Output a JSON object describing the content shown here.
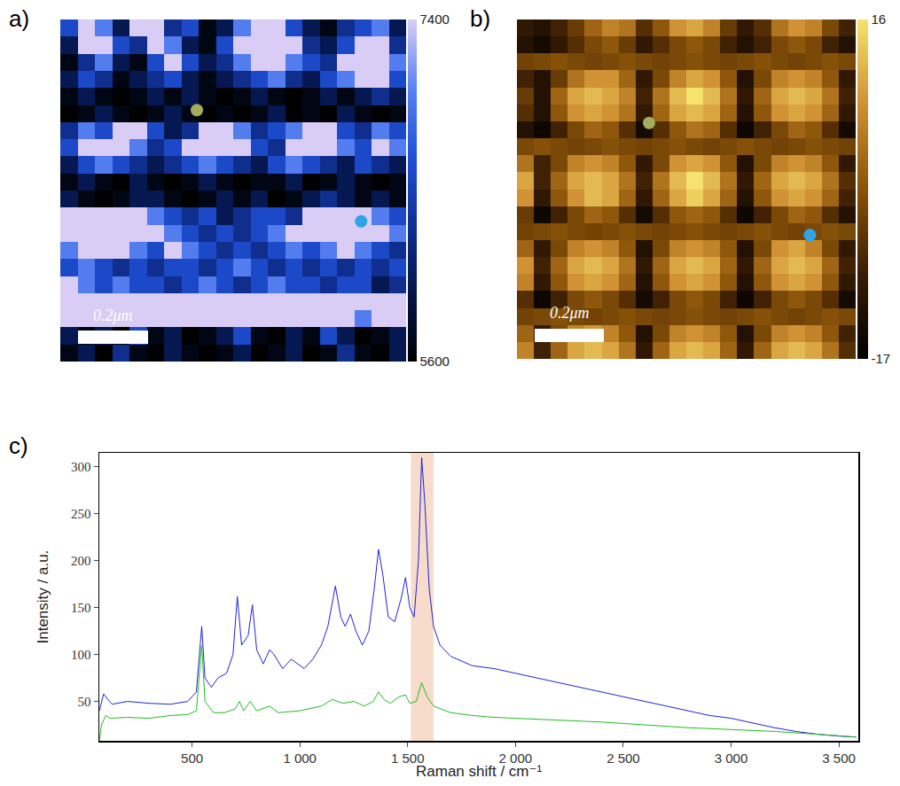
{
  "chart_data": [
    {
      "type": "heatmap",
      "panel": "a)",
      "tick_labels": false,
      "grid": false,
      "scale_bar": "0.2μm",
      "zlim": [
        5600,
        7400
      ],
      "zticks": [
        5600,
        7400
      ],
      "points": [
        {
          "color": "#a4ad5a",
          "x": 7.4,
          "y": 4.8
        },
        {
          "color": "#2ea3e6",
          "x": 16.9,
          "y": 11.3
        }
      ],
      "z": [
        [
          6600,
          7400,
          7000,
          6000,
          7400,
          7400,
          6300,
          6600,
          5700,
          6000,
          7000,
          7400,
          7400,
          6600,
          6000,
          5700,
          6300,
          6600,
          7000,
          6000
        ],
        [
          6000,
          7400,
          7400,
          6600,
          6300,
          7400,
          7000,
          6000,
          5700,
          6600,
          7400,
          7400,
          7400,
          7400,
          6300,
          6000,
          6600,
          7400,
          7400,
          6300
        ],
        [
          5700,
          6300,
          7000,
          6000,
          5700,
          6600,
          7400,
          6600,
          6000,
          6300,
          7000,
          7400,
          7400,
          7000,
          6600,
          6300,
          7400,
          7400,
          7400,
          7000
        ],
        [
          6000,
          6600,
          6300,
          5700,
          6000,
          6300,
          6600,
          6000,
          5700,
          6000,
          6300,
          6600,
          7000,
          6300,
          6000,
          6600,
          7000,
          7400,
          7400,
          6600
        ],
        [
          5700,
          6000,
          5700,
          5600,
          5700,
          6000,
          5700,
          6000,
          5700,
          5600,
          5700,
          6000,
          5700,
          5600,
          5700,
          6000,
          5700,
          6000,
          6300,
          6000
        ],
        [
          5600,
          5700,
          6000,
          5700,
          5600,
          5700,
          6000,
          5700,
          5600,
          5700,
          5600,
          5700,
          6000,
          5600,
          5700,
          5600,
          6000,
          5700,
          5600,
          5700
        ],
        [
          6300,
          7000,
          6600,
          7400,
          7400,
          6600,
          6000,
          6300,
          7400,
          7400,
          7000,
          6300,
          6600,
          7000,
          7400,
          7400,
          6600,
          6300,
          7000,
          6600
        ],
        [
          6600,
          7400,
          7400,
          7400,
          7000,
          6300,
          6600,
          7400,
          7400,
          7400,
          7400,
          6600,
          6300,
          7400,
          7400,
          7400,
          7000,
          6600,
          7400,
          7000
        ],
        [
          6000,
          6600,
          7000,
          6600,
          6300,
          6000,
          6300,
          6600,
          7000,
          6600,
          6300,
          6000,
          6600,
          7000,
          6600,
          6300,
          6000,
          6600,
          6300,
          6000
        ],
        [
          5700,
          6000,
          5700,
          5600,
          6000,
          5700,
          5600,
          5700,
          6000,
          5700,
          5600,
          5700,
          5700,
          6000,
          5600,
          5700,
          6000,
          5700,
          5600,
          5700
        ],
        [
          6000,
          5700,
          5600,
          5700,
          6000,
          6000,
          5700,
          5600,
          5700,
          6000,
          5700,
          6000,
          5600,
          5700,
          6000,
          6300,
          6000,
          5700,
          6000,
          5700
        ],
        [
          7400,
          7400,
          7400,
          7400,
          7400,
          7000,
          6600,
          6300,
          6600,
          6000,
          6300,
          6600,
          6600,
          6300,
          7400,
          7400,
          7400,
          7400,
          7000,
          6600
        ],
        [
          7400,
          7400,
          7400,
          7400,
          7400,
          7400,
          7000,
          6600,
          6300,
          6600,
          6300,
          6600,
          7000,
          7400,
          7400,
          7400,
          7400,
          7400,
          7400,
          7000
        ],
        [
          7000,
          7400,
          7400,
          7400,
          7000,
          6600,
          7400,
          7000,
          6600,
          6300,
          6600,
          6300,
          6600,
          7000,
          6600,
          7000,
          7400,
          7000,
          6600,
          6300
        ],
        [
          6600,
          7000,
          6600,
          6300,
          6600,
          6300,
          6600,
          6600,
          6300,
          6600,
          7000,
          6600,
          6300,
          6600,
          6300,
          6600,
          6300,
          6600,
          6300,
          6600
        ],
        [
          7400,
          7000,
          6600,
          7000,
          6600,
          6600,
          6300,
          6600,
          7000,
          6600,
          6300,
          6600,
          7000,
          6600,
          6600,
          6300,
          6600,
          6600,
          6000,
          6300
        ],
        [
          7400,
          7400,
          7400,
          7400,
          7400,
          7400,
          7400,
          7400,
          7400,
          7400,
          7400,
          7400,
          7400,
          7400,
          7400,
          7400,
          7400,
          7400,
          7400,
          7400
        ],
        [
          7400,
          7400,
          7400,
          7400,
          7400,
          7400,
          7400,
          7400,
          7400,
          7400,
          7400,
          7400,
          7400,
          7400,
          7400,
          7400,
          7400,
          7000,
          7400,
          7400
        ],
        [
          6000,
          5700,
          6000,
          5600,
          6600,
          5700,
          6000,
          5600,
          5700,
          6000,
          6600,
          5700,
          5600,
          6000,
          5700,
          6600,
          6000,
          5600,
          5700,
          6000
        ],
        [
          5700,
          6000,
          5600,
          6300,
          5700,
          5600,
          6000,
          5700,
          5600,
          5700,
          6000,
          5600,
          5700,
          6000,
          5600,
          5700,
          6300,
          5700,
          5600,
          6000
        ]
      ]
    },
    {
      "type": "heatmap",
      "panel": "b)",
      "tick_labels": false,
      "grid": false,
      "scale_bar": "0.2μm",
      "zlim": [
        -17,
        16
      ],
      "zticks": [
        -17,
        16
      ],
      "points": [
        {
          "color": "#a4ad5a",
          "x": 7.3,
          "y": 5.6
        },
        {
          "color": "#2ea3e6",
          "x": 16.8,
          "y": 12.2
        }
      ],
      "z": [
        [
          -10,
          -12,
          -8,
          -4,
          2,
          6,
          4,
          -6,
          0,
          8,
          10,
          6,
          -4,
          -10,
          -6,
          4,
          8,
          6,
          -2,
          -8
        ],
        [
          -12,
          -14,
          -10,
          -6,
          -2,
          0,
          -4,
          -10,
          -6,
          -2,
          0,
          -2,
          -8,
          -12,
          -8,
          -2,
          0,
          -2,
          -8,
          -12
        ],
        [
          -3,
          -2,
          -1,
          -2,
          -3,
          -2,
          -1,
          -2,
          -3,
          -2,
          -1,
          -2,
          -3,
          -2,
          -1,
          -2,
          -3,
          -2,
          -1,
          -2
        ],
        [
          -8,
          -12,
          -4,
          4,
          8,
          8,
          2,
          -10,
          -2,
          6,
          10,
          8,
          0,
          -12,
          -2,
          6,
          8,
          6,
          0,
          -10
        ],
        [
          -4,
          -12,
          2,
          10,
          12,
          10,
          6,
          -8,
          4,
          12,
          16,
          12,
          4,
          -10,
          2,
          10,
          12,
          10,
          4,
          -8
        ],
        [
          -6,
          -12,
          0,
          8,
          10,
          8,
          4,
          -10,
          2,
          10,
          12,
          10,
          2,
          -12,
          0,
          8,
          10,
          8,
          2,
          -10
        ],
        [
          -12,
          -15,
          -8,
          -2,
          2,
          0,
          -6,
          -14,
          -6,
          0,
          4,
          2,
          -6,
          -15,
          -8,
          -2,
          2,
          0,
          -6,
          -14
        ],
        [
          -2,
          -1,
          -2,
          -3,
          -2,
          -1,
          -2,
          -3,
          -2,
          -1,
          -2,
          -3,
          -2,
          -1,
          -2,
          -3,
          -2,
          -1,
          -2,
          -3
        ],
        [
          4,
          -8,
          -2,
          6,
          8,
          6,
          0,
          -10,
          -2,
          8,
          10,
          8,
          0,
          -12,
          -2,
          6,
          8,
          6,
          0,
          -10
        ],
        [
          10,
          -8,
          2,
          10,
          12,
          10,
          4,
          -8,
          4,
          12,
          16,
          12,
          4,
          -10,
          2,
          10,
          12,
          10,
          4,
          -6
        ],
        [
          8,
          -10,
          0,
          8,
          12,
          10,
          2,
          -10,
          2,
          10,
          14,
          10,
          2,
          -12,
          0,
          8,
          10,
          8,
          2,
          -8
        ],
        [
          -4,
          -15,
          -8,
          -2,
          2,
          0,
          -6,
          -14,
          -6,
          0,
          2,
          0,
          -6,
          -15,
          -8,
          -2,
          2,
          0,
          -6,
          -12
        ],
        [
          -3,
          -2,
          -1,
          -2,
          -3,
          -2,
          -1,
          -2,
          -3,
          -2,
          -1,
          -2,
          -3,
          -2,
          -1,
          -2,
          -3,
          -2,
          -1,
          -2
        ],
        [
          2,
          -10,
          -2,
          6,
          8,
          6,
          0,
          -12,
          -2,
          6,
          8,
          6,
          0,
          -12,
          -2,
          8,
          10,
          6,
          -2,
          -10
        ],
        [
          8,
          -8,
          2,
          10,
          12,
          10,
          4,
          -10,
          2,
          10,
          12,
          10,
          2,
          -10,
          2,
          10,
          12,
          10,
          2,
          -8
        ],
        [
          6,
          -10,
          0,
          8,
          10,
          8,
          2,
          -12,
          0,
          8,
          10,
          8,
          0,
          -12,
          0,
          8,
          10,
          8,
          0,
          -10
        ],
        [
          -6,
          -15,
          -8,
          -2,
          0,
          -2,
          -6,
          -14,
          -8,
          -2,
          0,
          -2,
          -8,
          -15,
          -8,
          -2,
          0,
          -2,
          -6,
          -14
        ],
        [
          -3,
          -2,
          -1,
          -2,
          -3,
          -2,
          -1,
          -2,
          -3,
          -2,
          -1,
          -2,
          -3,
          -2,
          -1,
          -2,
          -3,
          -2,
          -1,
          -2
        ],
        [
          2,
          -10,
          -2,
          6,
          8,
          6,
          0,
          -12,
          -2,
          6,
          8,
          6,
          0,
          -12,
          -2,
          6,
          8,
          6,
          0,
          -8
        ],
        [
          6,
          -8,
          2,
          10,
          12,
          10,
          4,
          -10,
          2,
          10,
          12,
          10,
          2,
          -10,
          2,
          10,
          12,
          10,
          4,
          -6
        ]
      ]
    },
    {
      "type": "line",
      "panel": "c)",
      "grid": false,
      "x_label": "Raman shift / cm⁻¹",
      "y_label": "Intensity / a.u.",
      "xlim": [
        70,
        3590
      ],
      "ylim": [
        8,
        315
      ],
      "xticks": [
        500,
        {
          "value": 1000,
          "label": "1 000"
        },
        {
          "value": 1500,
          "label": "1 500"
        },
        {
          "value": 2000,
          "label": "2 000"
        },
        {
          "value": 2500,
          "label": "2 500"
        },
        {
          "value": 3000,
          "label": "3 000"
        },
        {
          "value": 3500,
          "label": "3 500"
        }
      ],
      "yticks": [
        50,
        100,
        150,
        200,
        250,
        300
      ],
      "bands": [
        {
          "x0": 1515,
          "x1": 1620
        }
      ],
      "series": [
        {
          "color": "#2222d8",
          "x": [
            70,
            90,
            110,
            130,
            200,
            300,
            400,
            480,
            520,
            545,
            560,
            590,
            620,
            660,
            690,
            710,
            730,
            760,
            780,
            800,
            830,
            860,
            880,
            920,
            960,
            990,
            1020,
            1060,
            1100,
            1130,
            1165,
            1190,
            1210,
            1235,
            1260,
            1290,
            1320,
            1345,
            1365,
            1385,
            1410,
            1440,
            1470,
            1490,
            1510,
            1530,
            1550,
            1565,
            1580,
            1600,
            1620,
            1650,
            1700,
            1800,
            1900,
            2000,
            2100,
            2200,
            2300,
            2400,
            2500,
            2600,
            2700,
            2800,
            2900,
            3000,
            3100,
            3200,
            3300,
            3400,
            3500,
            3580
          ],
          "values": [
            40,
            58,
            52,
            47,
            50,
            48,
            47,
            50,
            60,
            130,
            75,
            65,
            75,
            80,
            100,
            162,
            110,
            120,
            153,
            105,
            90,
            105,
            100,
            85,
            95,
            90,
            85,
            95,
            110,
            130,
            173,
            140,
            130,
            143,
            125,
            110,
            125,
            170,
            212,
            185,
            140,
            135,
            160,
            182,
            150,
            140,
            200,
            310,
            260,
            170,
            130,
            110,
            98,
            88,
            85,
            80,
            75,
            70,
            65,
            60,
            55,
            50,
            45,
            40,
            35,
            32,
            27,
            22,
            18,
            15,
            13,
            12
          ]
        },
        {
          "color": "#22bb22",
          "x": [
            70,
            80,
            100,
            120,
            200,
            300,
            400,
            480,
            520,
            545,
            560,
            600,
            650,
            700,
            720,
            740,
            770,
            800,
            860,
            900,
            1000,
            1100,
            1150,
            1200,
            1250,
            1300,
            1340,
            1365,
            1390,
            1420,
            1460,
            1490,
            1510,
            1540,
            1565,
            1590,
            1620,
            1700,
            1800,
            1900,
            2000,
            2200,
            2400,
            2600,
            2800,
            3000,
            3200,
            3400,
            3580
          ],
          "values": [
            8,
            25,
            35,
            32,
            33,
            32,
            35,
            36,
            40,
            110,
            50,
            38,
            38,
            42,
            50,
            40,
            50,
            40,
            45,
            38,
            40,
            45,
            52,
            48,
            50,
            45,
            50,
            60,
            52,
            48,
            55,
            57,
            48,
            50,
            70,
            55,
            45,
            38,
            35,
            33,
            32,
            30,
            28,
            25,
            22,
            20,
            18,
            15,
            12
          ]
        }
      ]
    }
  ]
}
